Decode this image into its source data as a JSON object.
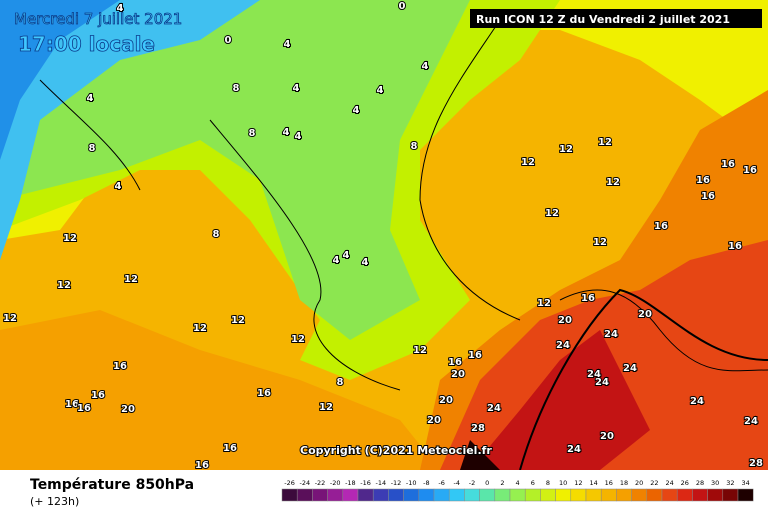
{
  "header": {
    "date": "Mercredi 7 juillet 2021",
    "time": "17:00 locale",
    "run": "Run ICON 12 Z du Vendredi 2 juillet 2021"
  },
  "map": {
    "copyright": "Copyright (C)2021 Meteociel.fr",
    "contour_labels": [
      "0",
      "4",
      "4",
      "0",
      "4",
      "8",
      "4",
      "4",
      "4",
      "4",
      "8",
      "4",
      "4",
      "8",
      "8",
      "4",
      "12",
      "12",
      "12",
      "12",
      "16",
      "16",
      "16",
      "16",
      "12",
      "8",
      "12",
      "4",
      "4",
      "4",
      "12",
      "16",
      "16",
      "12",
      "12",
      "12",
      "16",
      "20",
      "12",
      "20",
      "12",
      "24",
      "12",
      "24",
      "12",
      "16",
      "16",
      "20",
      "24",
      "24",
      "24",
      "8",
      "16",
      "16",
      "16",
      "16",
      "16",
      "20",
      "20",
      "12",
      "24",
      "24",
      "20",
      "28",
      "24",
      "16",
      "24",
      "20",
      "16",
      "28",
      "12"
    ]
  },
  "legend": {
    "title": "Température 850hPa",
    "lead": "(+ 123h)",
    "scale": [
      "-26",
      "-24",
      "-22",
      "-20",
      "-18",
      "-16",
      "-14",
      "-12",
      "-10",
      "-8",
      "-6",
      "-4",
      "-2",
      "0",
      "2",
      "4",
      "6",
      "8",
      "10",
      "12",
      "14",
      "16",
      "18",
      "20",
      "22",
      "24",
      "26",
      "28",
      "30",
      "32",
      "34"
    ],
    "colors": [
      "#3c0a3c",
      "#5a0f5a",
      "#781478",
      "#961e96",
      "#b428b4",
      "#50288c",
      "#3c3cb4",
      "#2850c8",
      "#1e6edc",
      "#1e8cf0",
      "#28aaf5",
      "#32c8f5",
      "#46dcdc",
      "#5ae6aa",
      "#78ec78",
      "#96f050",
      "#b4f028",
      "#d2f014",
      "#f0f000",
      "#f5dc00",
      "#f5c800",
      "#f5b400",
      "#f5a000",
      "#f08200",
      "#eb6400",
      "#e64614",
      "#dc2814",
      "#c31414",
      "#a00a0a",
      "#780505",
      "#1e0000"
    ]
  }
}
